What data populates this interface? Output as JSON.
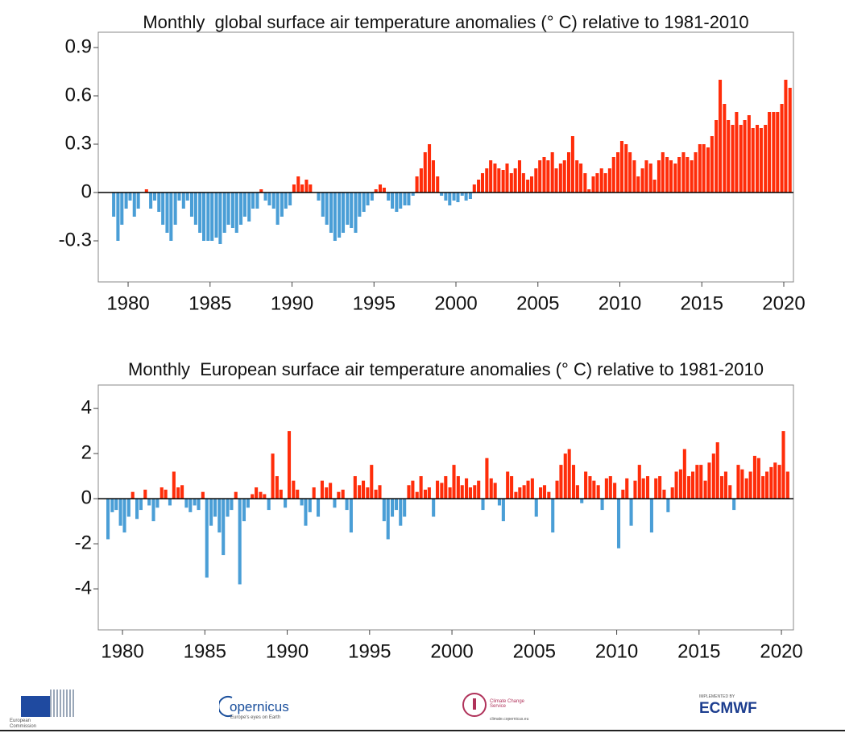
{
  "chart_data": [
    {
      "type": "bar",
      "title": "Monthly  global surface air temperature anomalies (° C) relative to 1981-2010",
      "positive_color": "#ff2d0a",
      "negative_color": "#4a9ed6",
      "xlim": [
        1978.18,
        2020.59
      ],
      "xticks": [
        1980,
        1985,
        1990,
        1995,
        2000,
        2005,
        2010,
        2015,
        2020
      ],
      "ylim": [
        -0.555,
        0.995
      ],
      "yticks": [
        -0.3,
        0,
        0.3,
        0.6,
        0.9
      ],
      "x": [
        1979.12,
        1979.38,
        1979.62,
        1979.88,
        1980.12,
        1980.38,
        1980.62,
        1980.88,
        1981.12,
        1981.38,
        1981.62,
        1981.88,
        1982.12,
        1982.38,
        1982.62,
        1982.88,
        1983.12,
        1983.38,
        1983.62,
        1983.88,
        1984.12,
        1984.38,
        1984.62,
        1984.88,
        1985.12,
        1985.38,
        1985.62,
        1985.88,
        1986.12,
        1986.38,
        1986.62,
        1986.88,
        1987.12,
        1987.38,
        1987.62,
        1987.88,
        1988.12,
        1988.38,
        1988.62,
        1988.88,
        1989.12,
        1989.38,
        1989.62,
        1989.88,
        1990.12,
        1990.38,
        1990.62,
        1990.88,
        1991.12,
        1991.38,
        1991.62,
        1991.88,
        1992.12,
        1992.38,
        1992.62,
        1992.88,
        1993.12,
        1993.38,
        1993.62,
        1993.88,
        1994.12,
        1994.38,
        1994.62,
        1994.88,
        1995.12,
        1995.38,
        1995.62,
        1995.88,
        1996.12,
        1996.38,
        1996.62,
        1996.88,
        1997.12,
        1997.38,
        1997.62,
        1997.88,
        1998.12,
        1998.38,
        1998.62,
        1998.88,
        1999.12,
        1999.38,
        1999.62,
        1999.88,
        2000.12,
        2000.38,
        2000.62,
        2000.88,
        2001.12,
        2001.38,
        2001.62,
        2001.88,
        2002.12,
        2002.38,
        2002.62,
        2002.88,
        2003.12,
        2003.38,
        2003.62,
        2003.88,
        2004.12,
        2004.38,
        2004.62,
        2004.88,
        2005.12,
        2005.38,
        2005.62,
        2005.88,
        2006.12,
        2006.38,
        2006.62,
        2006.88,
        2007.12,
        2007.38,
        2007.62,
        2007.88,
        2008.12,
        2008.38,
        2008.62,
        2008.88,
        2009.12,
        2009.38,
        2009.62,
        2009.88,
        2010.12,
        2010.38,
        2010.62,
        2010.88,
        2011.12,
        2011.38,
        2011.62,
        2011.88,
        2012.12,
        2012.38,
        2012.62,
        2012.88,
        2013.12,
        2013.38,
        2013.62,
        2013.88,
        2014.12,
        2014.38,
        2014.62,
        2014.88,
        2015.12,
        2015.38,
        2015.62,
        2015.88,
        2016.12,
        2016.38,
        2016.62,
        2016.88,
        2017.12,
        2017.38,
        2017.62,
        2017.88,
        2018.12,
        2018.38,
        2018.62,
        2018.88,
        2019.12,
        2019.38,
        2019.62,
        2019.88,
        2020.12,
        2020.38
      ],
      "values": [
        -0.15,
        -0.3,
        -0.2,
        -0.1,
        -0.05,
        -0.15,
        -0.1,
        0.0,
        0.02,
        -0.1,
        -0.05,
        -0.12,
        -0.2,
        -0.25,
        -0.3,
        -0.2,
        -0.05,
        -0.1,
        -0.05,
        -0.15,
        -0.2,
        -0.25,
        -0.3,
        -0.3,
        -0.3,
        -0.28,
        -0.32,
        -0.25,
        -0.2,
        -0.22,
        -0.25,
        -0.2,
        -0.15,
        -0.18,
        -0.1,
        -0.1,
        0.02,
        -0.05,
        -0.08,
        -0.1,
        -0.2,
        -0.15,
        -0.1,
        -0.08,
        0.05,
        0.1,
        0.05,
        0.08,
        0.05,
        0.0,
        -0.05,
        -0.15,
        -0.2,
        -0.25,
        -0.3,
        -0.28,
        -0.25,
        -0.2,
        -0.22,
        -0.25,
        -0.15,
        -0.12,
        -0.08,
        -0.05,
        0.02,
        0.05,
        0.03,
        -0.05,
        -0.1,
        -0.12,
        -0.1,
        -0.08,
        -0.08,
        -0.02,
        0.1,
        0.15,
        0.25,
        0.3,
        0.2,
        0.1,
        -0.02,
        -0.05,
        -0.08,
        -0.05,
        -0.06,
        -0.02,
        -0.05,
        -0.04,
        0.05,
        0.08,
        0.12,
        0.15,
        0.2,
        0.18,
        0.15,
        0.14,
        0.18,
        0.12,
        0.15,
        0.2,
        0.12,
        0.08,
        0.1,
        0.15,
        0.2,
        0.22,
        0.2,
        0.25,
        0.15,
        0.18,
        0.2,
        0.25,
        0.35,
        0.2,
        0.18,
        0.12,
        0.02,
        0.1,
        0.12,
        0.15,
        0.12,
        0.15,
        0.22,
        0.25,
        0.32,
        0.3,
        0.25,
        0.2,
        0.1,
        0.15,
        0.2,
        0.18,
        0.08,
        0.2,
        0.25,
        0.22,
        0.2,
        0.18,
        0.22,
        0.25,
        0.22,
        0.2,
        0.25,
        0.3,
        0.3,
        0.28,
        0.35,
        0.45,
        0.7,
        0.55,
        0.45,
        0.42,
        0.5,
        0.42,
        0.45,
        0.48,
        0.4,
        0.42,
        0.4,
        0.42,
        0.5,
        0.5,
        0.5,
        0.55,
        0.7,
        0.65
      ]
    },
    {
      "type": "bar",
      "title": "Monthly  European surface air temperature anomalies (° C) relative to 1981-2010",
      "positive_color": "#ff2d0a",
      "negative_color": "#4a9ed6",
      "xlim": [
        1978.53,
        2020.73
      ],
      "xticks": [
        1980,
        1985,
        1990,
        1995,
        2000,
        2005,
        2010,
        2015,
        2020
      ],
      "ylim": [
        -5.82,
        5.04
      ],
      "yticks": [
        -4,
        -2,
        0,
        2,
        4
      ],
      "x": [
        1979.12,
        1979.38,
        1979.62,
        1979.88,
        1980.12,
        1980.38,
        1980.62,
        1980.88,
        1981.12,
        1981.38,
        1981.62,
        1981.88,
        1982.12,
        1982.38,
        1982.62,
        1982.88,
        1983.12,
        1983.38,
        1983.62,
        1983.88,
        1984.12,
        1984.38,
        1984.62,
        1984.88,
        1985.12,
        1985.38,
        1985.62,
        1985.88,
        1986.12,
        1986.38,
        1986.62,
        1986.88,
        1987.12,
        1987.38,
        1987.62,
        1987.88,
        1988.12,
        1988.38,
        1988.62,
        1988.88,
        1989.12,
        1989.38,
        1989.62,
        1989.88,
        1990.12,
        1990.38,
        1990.62,
        1990.88,
        1991.12,
        1991.38,
        1991.62,
        1991.88,
        1992.12,
        1992.38,
        1992.62,
        1992.88,
        1993.12,
        1993.38,
        1993.62,
        1993.88,
        1994.12,
        1994.38,
        1994.62,
        1994.88,
        1995.12,
        1995.38,
        1995.62,
        1995.88,
        1996.12,
        1996.38,
        1996.62,
        1996.88,
        1997.12,
        1997.38,
        1997.62,
        1997.88,
        1998.12,
        1998.38,
        1998.62,
        1998.88,
        1999.12,
        1999.38,
        1999.62,
        1999.88,
        2000.12,
        2000.38,
        2000.62,
        2000.88,
        2001.12,
        2001.38,
        2001.62,
        2001.88,
        2002.12,
        2002.38,
        2002.62,
        2002.88,
        2003.12,
        2003.38,
        2003.62,
        2003.88,
        2004.12,
        2004.38,
        2004.62,
        2004.88,
        2005.12,
        2005.38,
        2005.62,
        2005.88,
        2006.12,
        2006.38,
        2006.62,
        2006.88,
        2007.12,
        2007.38,
        2007.62,
        2007.88,
        2008.12,
        2008.38,
        2008.62,
        2008.88,
        2009.12,
        2009.38,
        2009.62,
        2009.88,
        2010.12,
        2010.38,
        2010.62,
        2010.88,
        2011.12,
        2011.38,
        2011.62,
        2011.88,
        2012.12,
        2012.38,
        2012.62,
        2012.88,
        2013.12,
        2013.38,
        2013.62,
        2013.88,
        2014.12,
        2014.38,
        2014.62,
        2014.88,
        2015.12,
        2015.38,
        2015.62,
        2015.88,
        2016.12,
        2016.38,
        2016.62,
        2016.88,
        2017.12,
        2017.38,
        2017.62,
        2017.88,
        2018.12,
        2018.38,
        2018.62,
        2018.88,
        2019.12,
        2019.38,
        2019.62,
        2019.88,
        2020.12,
        2020.38
      ],
      "values": [
        -1.8,
        -0.6,
        -0.5,
        -1.2,
        -1.5,
        -0.8,
        0.3,
        -0.9,
        -0.5,
        0.4,
        -0.3,
        -1.0,
        -0.4,
        0.5,
        0.4,
        -0.3,
        1.2,
        0.5,
        0.6,
        -0.4,
        -0.6,
        -0.3,
        -0.5,
        0.3,
        -3.5,
        -1.2,
        -0.8,
        -1.5,
        -2.5,
        -0.8,
        -0.5,
        0.3,
        -3.8,
        -1.0,
        -0.4,
        0.2,
        0.5,
        0.3,
        0.2,
        -0.5,
        2.0,
        1.0,
        0.4,
        -0.4,
        3.0,
        0.8,
        0.4,
        -0.3,
        -1.2,
        -0.6,
        0.5,
        -0.8,
        0.8,
        0.5,
        0.7,
        -0.4,
        0.3,
        0.4,
        -0.5,
        -1.5,
        1.0,
        0.6,
        0.8,
        0.5,
        1.5,
        0.4,
        0.6,
        -1.0,
        -1.8,
        -0.8,
        -0.5,
        -1.2,
        -0.8,
        0.6,
        0.8,
        0.3,
        1.0,
        0.4,
        0.5,
        -0.8,
        0.8,
        0.7,
        1.0,
        0.5,
        1.5,
        1.0,
        0.6,
        0.9,
        0.5,
        0.6,
        0.8,
        -0.5,
        1.8,
        0.9,
        0.7,
        -0.3,
        -1.0,
        1.2,
        1.0,
        0.3,
        0.5,
        0.6,
        0.8,
        0.9,
        -0.8,
        0.5,
        0.6,
        0.3,
        -1.5,
        0.8,
        1.5,
        2.0,
        2.2,
        1.5,
        0.6,
        -0.2,
        1.2,
        1.0,
        0.8,
        0.6,
        -0.5,
        0.9,
        1.0,
        0.7,
        -2.2,
        0.4,
        0.9,
        -1.2,
        0.8,
        1.5,
        0.9,
        1.0,
        -1.5,
        0.9,
        1.0,
        0.4,
        -0.6,
        0.5,
        1.2,
        1.3,
        2.2,
        1.0,
        1.2,
        1.5,
        1.5,
        0.8,
        1.6,
        2.0,
        2.5,
        1.0,
        1.2,
        0.6,
        -0.5,
        1.5,
        1.3,
        0.9,
        1.2,
        1.9,
        1.8,
        1.0,
        1.2,
        1.4,
        1.6,
        1.5,
        3.0,
        1.2
      ]
    }
  ],
  "logos": {
    "eu": "European Commission",
    "copernicus": "opernicus",
    "copernicus_tag": "Europe's eyes on Earth",
    "c3s": "Climate Change Service",
    "c3s_url": "climate.copernicus.eu",
    "ecmwf_tag": "IMPLEMENTED BY",
    "ecmwf": "ECMWF"
  }
}
